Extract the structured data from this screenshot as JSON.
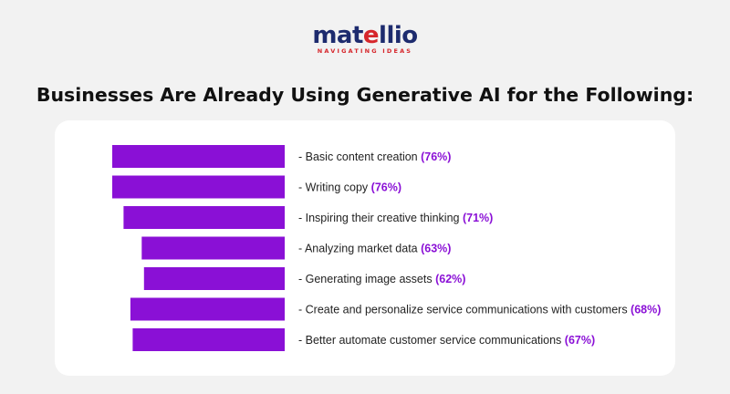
{
  "brand": {
    "logo_word_main": "mat",
    "logo_word_accent": "e",
    "logo_word_rest": "llio",
    "tagline": "NAVIGATING IDEAS",
    "primary_color": "#1d2b6e",
    "accent_color": "#d6262b"
  },
  "heading": "Businesses Are Already Using Generative AI for the Following:",
  "chart_data": {
    "type": "bar",
    "orientation": "horizontal",
    "bar_direction": "right-to-left",
    "bar_color": "#8a10d6",
    "label_prefix": "- ",
    "categories": [
      "Basic content creation",
      "Writing copy",
      "Inspiring their creative thinking",
      "Analyzing market data",
      "Generating image assets",
      "Create and personalize service communications with customers",
      "Better automate customer service communications"
    ],
    "values": [
      76,
      76,
      71,
      63,
      62,
      68,
      67
    ],
    "value_labels": [
      "(76%)",
      "(76%)",
      "(71%)",
      "(63%)",
      "(62%)",
      "(68%)",
      "(67%)"
    ],
    "unit": "%",
    "grid": false,
    "legend": "none"
  }
}
